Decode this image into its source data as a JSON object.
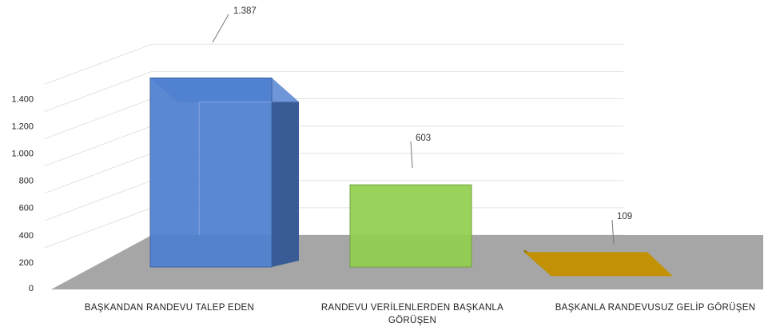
{
  "chart_data": {
    "type": "bar",
    "three_d": true,
    "categories": [
      "BAŞKANDAN RANDEVU TALEP EDEN",
      "RANDEVU VERİLENLERDEN BAŞKANLA GÖRÜŞEN",
      "BAŞKANLA RANDEVUSUZ GELİP GÖRÜŞEN"
    ],
    "category_lines": [
      [
        "BAŞKANDAN RANDEVU TALEP EDEN"
      ],
      [
        "RANDEVU VERİLENLERDEN BAŞKANLA",
        "GÖRÜŞEN"
      ],
      [
        "BAŞKANLA RANDEVUSUZ GELİP GÖRÜŞEN"
      ]
    ],
    "values": [
      1387,
      603,
      109
    ],
    "value_labels": [
      "1.387",
      "603",
      "109"
    ],
    "ylim": [
      0,
      1400
    ],
    "yticks": [
      0,
      200,
      400,
      600,
      800,
      1000,
      1200,
      1400
    ],
    "ytick_labels": [
      "0",
      "200",
      "400",
      "600",
      "800",
      "1.000",
      "1.200",
      "1.400"
    ],
    "colors": {
      "bars": [
        "#4f7fd0",
        "#92d050",
        "#f2b705"
      ],
      "floor": "#a6a6a6",
      "grid": "#e3e3e3"
    },
    "grid": true,
    "legend": "none"
  }
}
